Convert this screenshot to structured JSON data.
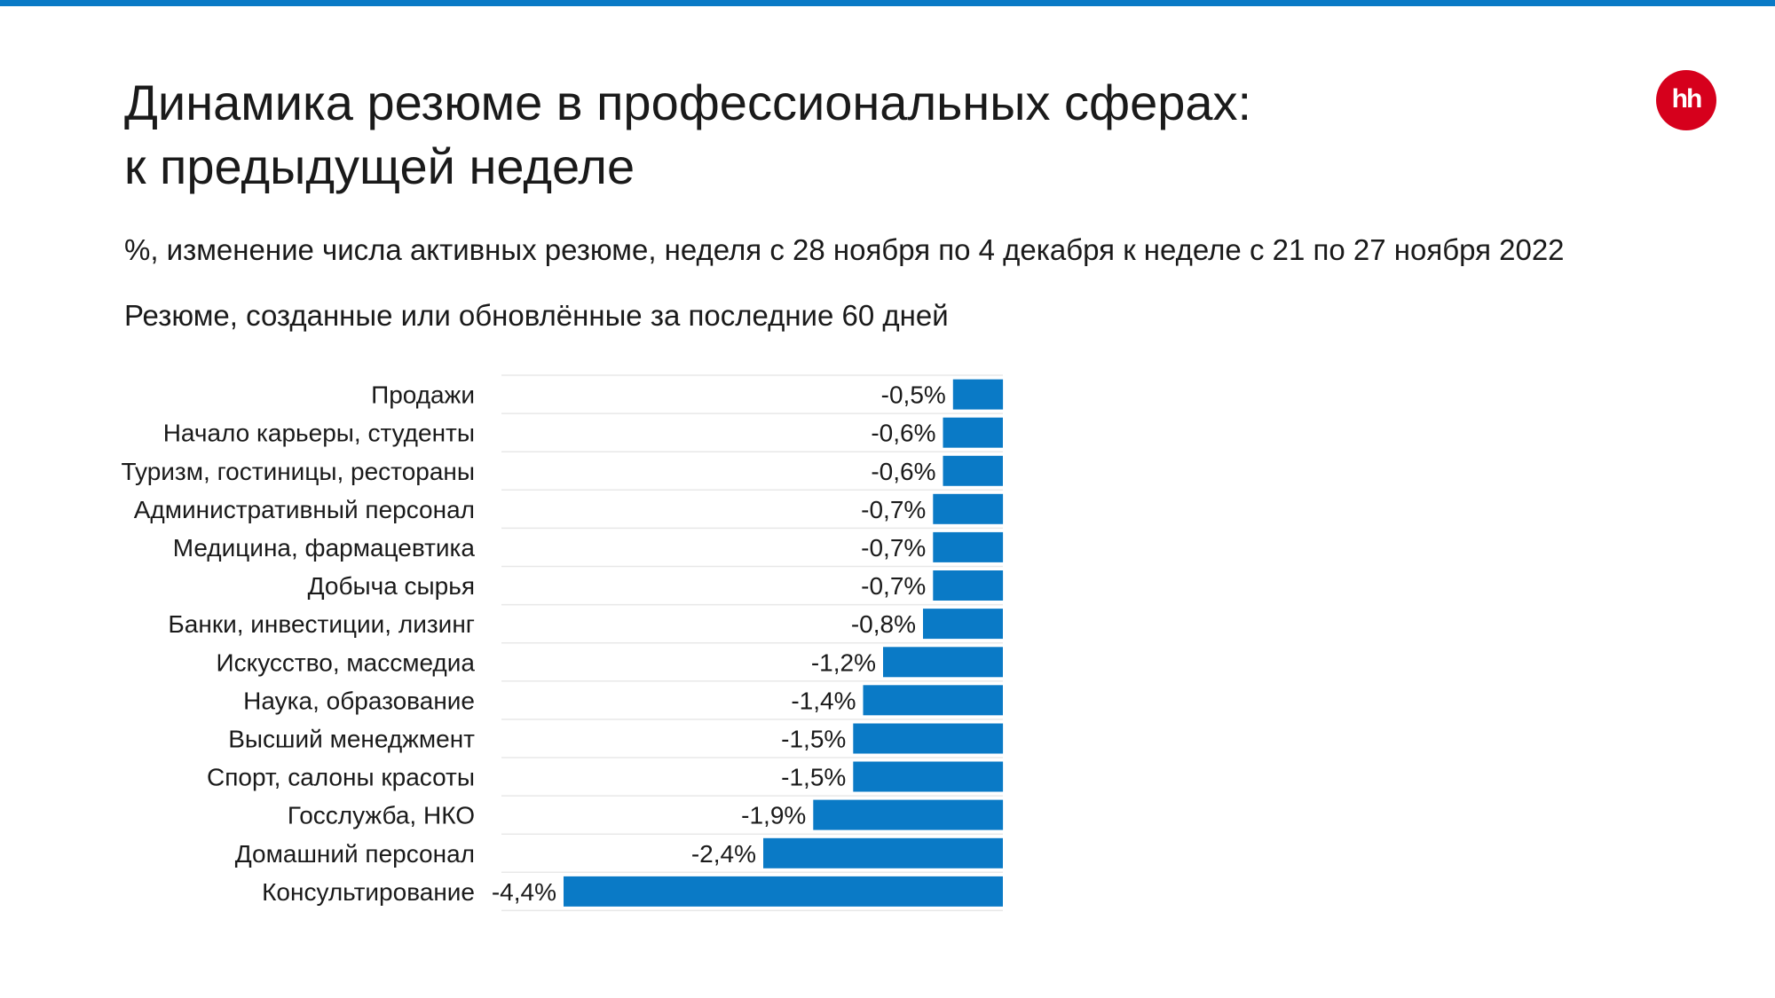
{
  "header": {
    "title_line1": "Динамика резюме в профессиональных сферах:",
    "title_line2": "к предыдущей неделе",
    "subtitle": "%, изменение числа активных резюме, неделя с 28 ноября по 4 декабря к неделе с 21 по 27 ноября 2022",
    "note": "Резюме, созданные или обновлённые за последние 60 дней"
  },
  "logo": {
    "text": "hh",
    "color": "#d6001c"
  },
  "colors": {
    "accent": "#0a7ac6",
    "bar": "#0a7ac6",
    "gridline": "#e8e8e8"
  },
  "chart_data": {
    "type": "bar",
    "orientation": "horizontal",
    "categories": [
      "Продажи",
      "Начало карьеры, студенты",
      "Туризм, гостиницы, рестораны",
      "Административный персонал",
      "Медицина, фармацевтика",
      "Добыча сырья",
      "Банки, инвестиции, лизинг",
      "Искусство, массмедиа",
      "Наука, образование",
      "Высший менеджмент",
      "Спорт, салоны красоты",
      "Госслужба, НКО",
      "Домашний персонал",
      "Консультирование"
    ],
    "values": [
      -0.5,
      -0.6,
      -0.6,
      -0.7,
      -0.7,
      -0.7,
      -0.8,
      -1.2,
      -1.4,
      -1.5,
      -1.5,
      -1.9,
      -2.4,
      -4.4
    ],
    "labels": [
      "-0,5%",
      "-0,6%",
      "-0,6%",
      "-0,7%",
      "-0,7%",
      "-0,7%",
      "-0,8%",
      "-1,2%",
      "-1,4%",
      "-1,5%",
      "-1,5%",
      "-1,9%",
      "-2,4%",
      "-4,4%"
    ],
    "xlim": [
      -5,
      0
    ],
    "grid": true,
    "legend": "none"
  }
}
